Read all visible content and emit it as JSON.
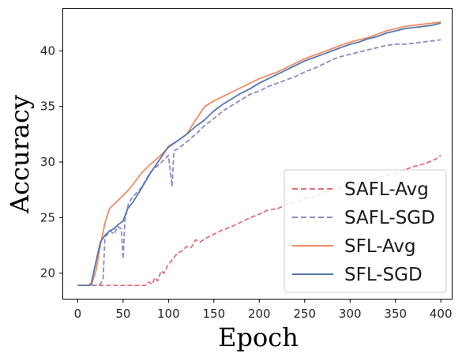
{
  "chart_data": {
    "type": "line",
    "title": "",
    "xlabel": "Epoch",
    "ylabel": "Accuracy",
    "xlim": [
      -16,
      412
    ],
    "ylim": [
      17.7,
      43.8
    ],
    "xticks": [
      0,
      50,
      100,
      150,
      200,
      250,
      300,
      350,
      400
    ],
    "yticks": [
      20,
      25,
      30,
      35,
      40
    ],
    "grid": false,
    "legend_position": "lower-right",
    "series": [
      {
        "name": "SAFL-Avg",
        "color": "#e0707a",
        "dash": "dashed",
        "x": [
          0,
          60,
          75,
          78,
          82,
          85,
          88,
          92,
          95,
          100,
          105,
          110,
          115,
          120,
          125,
          130,
          135,
          140,
          145,
          150,
          160,
          170,
          180,
          190,
          200,
          210,
          220,
          230,
          240,
          250,
          260,
          270,
          280,
          290,
          300,
          310,
          320,
          330,
          340,
          350,
          360,
          370,
          380,
          390,
          395,
          400
        ],
        "y": [
          18.9,
          18.9,
          18.9,
          19.2,
          19.0,
          19.6,
          19.3,
          20.2,
          20.0,
          20.8,
          21.3,
          21.8,
          22.0,
          22.4,
          22.3,
          23.0,
          22.8,
          23.1,
          23.3,
          23.5,
          23.9,
          24.2,
          24.6,
          25.0,
          25.3,
          25.7,
          25.8,
          26.2,
          26.4,
          26.7,
          26.9,
          27.2,
          27.5,
          27.7,
          27.9,
          28.1,
          28.3,
          28.6,
          28.8,
          29.0,
          29.3,
          29.6,
          29.8,
          30.1,
          30.3,
          30.6
        ]
      },
      {
        "name": "SAFL-SGD",
        "color": "#9088c8",
        "dash": "dashed",
        "x": [
          0,
          20,
          25,
          28,
          30,
          33,
          36,
          40,
          44,
          48,
          50,
          52,
          54,
          56,
          60,
          70,
          80,
          90,
          100,
          104,
          106,
          108,
          112,
          120,
          130,
          140,
          150,
          160,
          170,
          180,
          190,
          200,
          210,
          220,
          230,
          240,
          250,
          260,
          270,
          280,
          290,
          300,
          310,
          320,
          330,
          340,
          350,
          360,
          370,
          380,
          390,
          400
        ],
        "y": [
          18.9,
          18.9,
          19.0,
          19.5,
          23.3,
          23.5,
          23.8,
          23.5,
          24.2,
          24.0,
          21.3,
          24.8,
          25.5,
          26.3,
          26.8,
          27.7,
          29.1,
          29.8,
          30.6,
          27.8,
          31.0,
          31.1,
          31.3,
          31.8,
          32.5,
          33.3,
          33.9,
          34.6,
          35.1,
          35.6,
          36.1,
          36.4,
          36.8,
          37.1,
          37.4,
          37.7,
          38.1,
          38.4,
          38.8,
          39.2,
          39.5,
          39.7,
          39.9,
          40.1,
          40.3,
          40.5,
          40.6,
          40.6,
          40.7,
          40.8,
          40.9,
          41.0
        ]
      },
      {
        "name": "SFL-Avg",
        "color": "#f08c64",
        "dash": "solid",
        "x": [
          0,
          15,
          20,
          25,
          30,
          35,
          40,
          45,
          50,
          55,
          60,
          70,
          80,
          90,
          100,
          110,
          120,
          130,
          140,
          150,
          160,
          170,
          180,
          190,
          200,
          210,
          220,
          230,
          240,
          250,
          260,
          270,
          280,
          290,
          300,
          310,
          320,
          330,
          340,
          350,
          360,
          370,
          380,
          390,
          400
        ],
        "y": [
          18.9,
          18.9,
          20.2,
          22.5,
          24.5,
          25.8,
          26.2,
          26.6,
          27.0,
          27.4,
          27.9,
          29.0,
          29.8,
          30.5,
          31.3,
          31.9,
          32.5,
          33.8,
          35.0,
          35.5,
          35.9,
          36.3,
          36.7,
          37.1,
          37.5,
          37.8,
          38.1,
          38.5,
          38.9,
          39.3,
          39.6,
          39.9,
          40.2,
          40.5,
          40.8,
          41.0,
          41.2,
          41.5,
          41.8,
          42.0,
          42.2,
          42.3,
          42.4,
          42.5,
          42.6
        ]
      },
      {
        "name": "SFL-SGD",
        "color": "#5577b0",
        "dash": "solid",
        "x": [
          0,
          12,
          15,
          20,
          25,
          30,
          35,
          40,
          45,
          50,
          55,
          60,
          70,
          80,
          90,
          100,
          110,
          120,
          130,
          140,
          150,
          160,
          170,
          180,
          190,
          200,
          210,
          220,
          230,
          240,
          250,
          260,
          270,
          280,
          290,
          300,
          310,
          320,
          330,
          340,
          350,
          360,
          370,
          380,
          390,
          400
        ],
        "y": [
          18.9,
          18.9,
          19.1,
          21.0,
          22.8,
          23.4,
          23.8,
          24.0,
          24.4,
          24.7,
          25.8,
          26.3,
          27.6,
          29.0,
          30.2,
          31.4,
          31.9,
          32.5,
          33.2,
          33.8,
          34.6,
          35.2,
          35.7,
          36.2,
          36.6,
          37.1,
          37.5,
          37.9,
          38.3,
          38.7,
          39.1,
          39.4,
          39.7,
          40.0,
          40.3,
          40.6,
          40.8,
          41.1,
          41.3,
          41.6,
          41.8,
          42.0,
          42.1,
          42.2,
          42.3,
          42.5
        ]
      }
    ]
  }
}
